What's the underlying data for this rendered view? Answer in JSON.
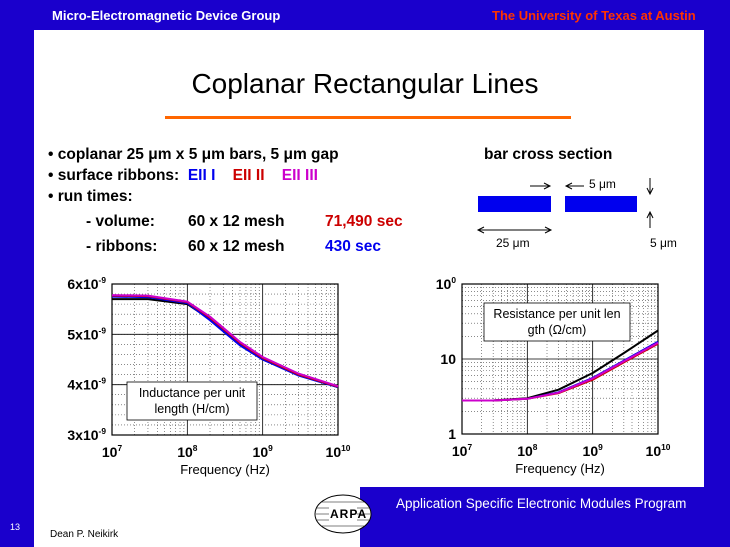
{
  "header": {
    "left": "Micro-Electromagnetic Device Group",
    "right": "The University of Texas at Austin"
  },
  "title": "Coplanar Rectangular Lines",
  "bullets": {
    "b1": "coplanar 25 μm x 5 μm bars, 5 μm gap",
    "b2_prefix": "surface ribbons:",
    "b2_e1": "EII I",
    "b2_e2": "EII II",
    "b2_e3": "EII III",
    "b3": "run times:",
    "vol_label": "- volume:",
    "vol_mesh": "60 x 12 mesh",
    "vol_time": "71,490 sec",
    "rib_label": "- ribbons:",
    "rib_mesh": "60 x 12 mesh",
    "rib_time": "430 sec",
    "bullet_char": "•"
  },
  "cross_section": {
    "title": "bar cross section",
    "gap_label": "5 μm",
    "width_label": "25 μm",
    "height_label": "5 μm"
  },
  "chart_data": [
    {
      "type": "line",
      "xscale": "log",
      "xlim": [
        10000000.0,
        10000000000.0
      ],
      "ylim": [
        3e-09,
        6e-09
      ],
      "xlabel": "Frequency (Hz)",
      "ylabel": "",
      "yticks": [
        "3x10-9",
        "4x10-9",
        "5x10-9",
        "6x10-9"
      ],
      "xticks": [
        "107",
        "108",
        "109",
        "1010"
      ],
      "annotation": "Inductance per unit length (H/cm)",
      "series": [
        {
          "color": "#000000",
          "x": [
            10000000.0,
            30000000.0,
            100000000.0,
            200000000.0,
            500000000.0,
            1000000000.0,
            3000000000.0,
            10000000000.0
          ],
          "y": [
            5.7e-09,
            5.7e-09,
            5.6e-09,
            5.3e-09,
            4.8e-09,
            4.5e-09,
            4.2e-09,
            3.95e-09
          ]
        },
        {
          "color": "#0000ee",
          "x": [
            10000000.0,
            30000000.0,
            100000000.0,
            200000000.0,
            500000000.0,
            1000000000.0,
            3000000000.0,
            10000000000.0
          ],
          "y": [
            5.75e-09,
            5.74e-09,
            5.62e-09,
            5.28e-09,
            4.78e-09,
            4.5e-09,
            4.18e-09,
            3.95e-09
          ]
        },
        {
          "color": "#cc0000",
          "x": [
            10000000.0,
            30000000.0,
            100000000.0,
            200000000.0,
            500000000.0,
            1000000000.0,
            3000000000.0,
            10000000000.0
          ],
          "y": [
            5.77e-09,
            5.76e-09,
            5.64e-09,
            5.33e-09,
            4.83e-09,
            4.53e-09,
            4.2e-09,
            3.96e-09
          ]
        },
        {
          "color": "#cc00cc",
          "x": [
            10000000.0,
            30000000.0,
            100000000.0,
            200000000.0,
            500000000.0,
            1000000000.0,
            3000000000.0,
            10000000000.0
          ],
          "y": [
            5.78e-09,
            5.77e-09,
            5.65e-09,
            5.35e-09,
            4.85e-09,
            4.55e-09,
            4.22e-09,
            3.97e-09
          ]
        }
      ]
    },
    {
      "type": "line",
      "xscale": "log",
      "yscale": "log",
      "xlim": [
        10000000.0,
        10000000000.0
      ],
      "ylim": [
        1,
        100
      ],
      "xlabel": "Frequency (Hz)",
      "ylabel": "",
      "yticks": [
        "1",
        "10",
        "100"
      ],
      "xticks": [
        "107",
        "108",
        "109",
        "1010"
      ],
      "annotation": "Resistance per unit length (Ω/cm)",
      "series": [
        {
          "color": "#000000",
          "x": [
            10000000.0,
            30000000.0,
            100000000.0,
            300000000.0,
            1000000000.0,
            3000000000.0,
            10000000000.0
          ],
          "y": [
            2.8,
            2.8,
            3.0,
            3.9,
            6.5,
            12,
            24
          ]
        },
        {
          "color": "#0000ee",
          "x": [
            10000000.0,
            30000000.0,
            100000000.0,
            300000000.0,
            1000000000.0,
            3000000000.0,
            10000000000.0
          ],
          "y": [
            2.8,
            2.8,
            2.95,
            3.6,
            5.6,
            9.5,
            17
          ]
        },
        {
          "color": "#cc0000",
          "x": [
            10000000.0,
            30000000.0,
            100000000.0,
            300000000.0,
            1000000000.0,
            3000000000.0,
            10000000000.0
          ],
          "y": [
            2.8,
            2.8,
            2.95,
            3.5,
            5.3,
            9,
            16
          ]
        },
        {
          "color": "#cc00cc",
          "x": [
            10000000.0,
            30000000.0,
            100000000.0,
            300000000.0,
            1000000000.0,
            3000000000.0,
            10000000000.0
          ],
          "y": [
            2.8,
            2.8,
            2.95,
            3.55,
            5.5,
            9.3,
            16.5
          ]
        }
      ]
    }
  ],
  "footer": {
    "program": "Application Specific Electronic Modules Program",
    "author": "Dean P. Neikirk",
    "page": "13",
    "logo_text": "ARPA"
  }
}
